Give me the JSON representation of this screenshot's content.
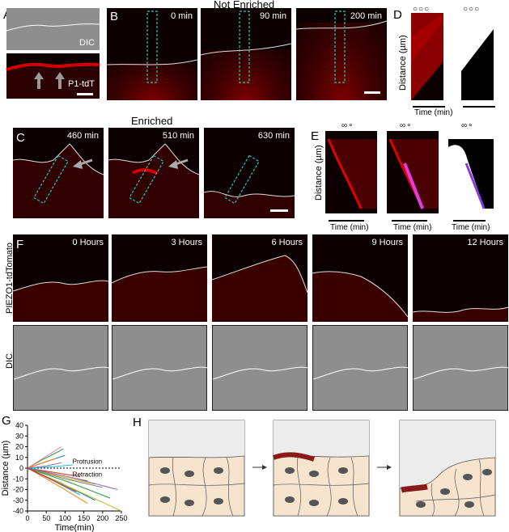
{
  "panels": {
    "A": {
      "letter": "A",
      "top_label": "DIC",
      "bottom_label": "P1-tdT"
    },
    "B": {
      "letter": "B",
      "title": "Not Enriched",
      "times": [
        "0 min",
        "90 min",
        "200 min"
      ]
    },
    "C": {
      "letter": "C",
      "title": "Enriched",
      "times": [
        "460 min",
        "510 min",
        "630 min"
      ]
    },
    "D": {
      "letter": "D",
      "ylabel": "Distance (µm)",
      "xlabel": "Time (min)"
    },
    "E": {
      "letter": "E",
      "ylabel": "Distance (µm)",
      "xlabel": "Time (min)"
    },
    "F": {
      "letter": "F",
      "times": [
        "0 Hours",
        "3 Hours",
        "6 Hours",
        "9 Hours",
        "12 Hours"
      ],
      "row1_label": "PIEZO1-tdTomato",
      "row2_label": "DIC"
    },
    "G": {
      "letter": "G"
    },
    "H": {
      "letter": "H"
    }
  },
  "chart_data": {
    "type": "line",
    "xlabel": "Time(min)",
    "ylabel": "Distance (µm)",
    "xlim": [
      0,
      250
    ],
    "ylim": [
      -40,
      40
    ],
    "xticks": [
      0,
      50,
      100,
      150,
      200,
      250
    ],
    "yticks": [
      40,
      30,
      20,
      10,
      0,
      -10,
      -20,
      -30,
      -40
    ],
    "annotations": [
      "Protrusion",
      "Retraction"
    ],
    "reference_line": 0,
    "series": [
      {
        "color": "#2ca02c",
        "x": [
          0,
          40,
          80,
          95
        ],
        "y": [
          0,
          8,
          15,
          18
        ]
      },
      {
        "color": "#e377c2",
        "x": [
          0,
          45,
          90
        ],
        "y": [
          0,
          10,
          20
        ]
      },
      {
        "color": "#1f77b4",
        "x": [
          0,
          50,
          100
        ],
        "y": [
          0,
          6,
          12
        ]
      },
      {
        "color": "#ff7f0e",
        "x": [
          0,
          40,
          75
        ],
        "y": [
          0,
          5,
          9
        ]
      },
      {
        "color": "#9467bd",
        "x": [
          0,
          50,
          90
        ],
        "y": [
          0,
          2,
          5
        ]
      },
      {
        "color": "#17becf",
        "x": [
          0,
          60,
          120
        ],
        "y": [
          0,
          1,
          3
        ]
      },
      {
        "color": "#d62728",
        "x": [
          0,
          70,
          140
        ],
        "y": [
          0,
          -4,
          -8
        ]
      },
      {
        "color": "#8c564b",
        "x": [
          0,
          80,
          160
        ],
        "y": [
          0,
          -6,
          -12
        ]
      },
      {
        "color": "#bcbd22",
        "x": [
          0,
          90,
          180
        ],
        "y": [
          0,
          -8,
          -15
        ]
      },
      {
        "color": "#7f7f7f",
        "x": [
          0,
          100,
          200
        ],
        "y": [
          0,
          -10,
          -18
        ]
      },
      {
        "color": "#9467bd",
        "x": [
          0,
          120,
          240
        ],
        "y": [
          0,
          -9,
          -20
        ]
      },
      {
        "color": "#2ca02c",
        "x": [
          0,
          110,
          220
        ],
        "y": [
          0,
          -13,
          -28
        ]
      },
      {
        "color": "#1f77b4",
        "x": [
          0,
          90,
          180
        ],
        "y": [
          0,
          -14,
          -30
        ]
      },
      {
        "color": "#ff7f0e",
        "x": [
          0,
          80,
          160
        ],
        "y": [
          0,
          -16,
          -33
        ]
      },
      {
        "color": "#bcbd22",
        "x": [
          0,
          120,
          250
        ],
        "y": [
          0,
          -19,
          -40
        ]
      },
      {
        "color": "#17becf",
        "x": [
          0,
          70,
          140
        ],
        "y": [
          0,
          -12,
          -25
        ]
      },
      {
        "color": "#d62728",
        "x": [
          0,
          60,
          130
        ],
        "y": [
          0,
          -10,
          -22
        ]
      }
    ]
  }
}
